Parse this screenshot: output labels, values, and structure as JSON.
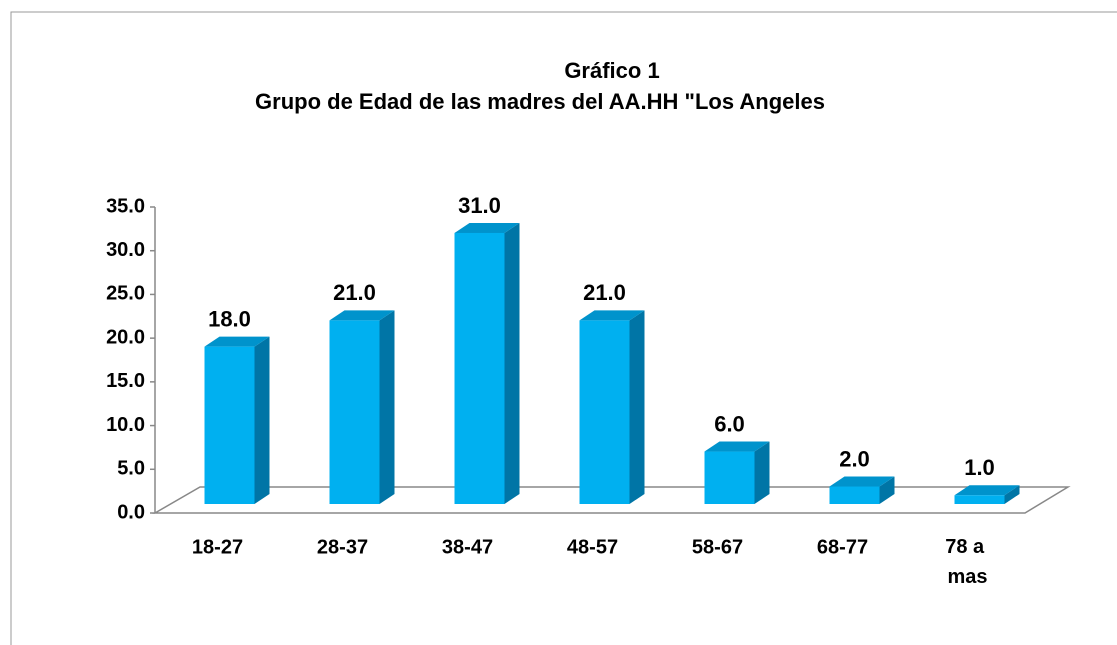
{
  "chart_data": {
    "type": "bar3d",
    "title": "Gráfico 1",
    "subtitle": "Grupo de Edad de las madres del AA.HH \"Los Angeles",
    "categories": [
      "18-27",
      "28-37",
      "38-47",
      "48-57",
      "58-67",
      "68-77",
      "78 a mas"
    ],
    "values": [
      18,
      21,
      31,
      21,
      6,
      2,
      1
    ],
    "value_labels": [
      "18.0",
      "21.0",
      "31.0",
      "21.0",
      "6.0",
      "2.0",
      "1.0"
    ],
    "color": "#00b0f0",
    "ylim": [
      0,
      35
    ],
    "yticks": [
      {
        "value": 0,
        "label": "0.0"
      },
      {
        "value": 5,
        "label": "5.0"
      },
      {
        "value": 10,
        "label": "10.0"
      },
      {
        "value": 15,
        "label": "15.0"
      },
      {
        "value": 20,
        "label": "20.0"
      },
      {
        "value": 25,
        "label": "25.0"
      },
      {
        "value": 30,
        "label": "30.0"
      },
      {
        "value": 35,
        "label": "35.0"
      }
    ],
    "grid": false
  }
}
